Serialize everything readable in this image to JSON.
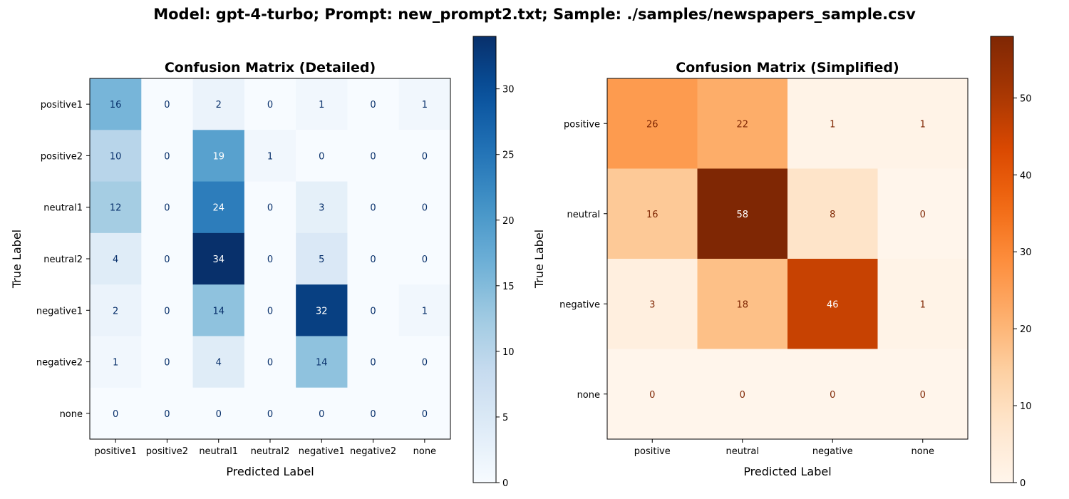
{
  "suptitle": "Model: gpt-4-turbo; Prompt: new_prompt2.txt; Sample: ./samples/newspapers_sample.csv",
  "chart_data": [
    {
      "type": "heatmap",
      "title": "Confusion Matrix (Detailed)",
      "xlabel": "Predicted Label",
      "ylabel": "True Label",
      "colormap": "Blues",
      "x_categories": [
        "positive1",
        "positive2",
        "neutral1",
        "neutral2",
        "negative1",
        "negative2",
        "none"
      ],
      "y_categories": [
        "positive1",
        "positive2",
        "neutral1",
        "neutral2",
        "negative1",
        "negative2",
        "none"
      ],
      "values": [
        [
          16,
          0,
          2,
          0,
          1,
          0,
          1
        ],
        [
          10,
          0,
          19,
          1,
          0,
          0,
          0
        ],
        [
          12,
          0,
          24,
          0,
          3,
          0,
          0
        ],
        [
          4,
          0,
          34,
          0,
          5,
          0,
          0
        ],
        [
          2,
          0,
          14,
          0,
          32,
          0,
          1
        ],
        [
          1,
          0,
          4,
          0,
          14,
          0,
          0
        ],
        [
          0,
          0,
          0,
          0,
          0,
          0,
          0
        ]
      ],
      "colorbar_range": [
        0,
        34
      ],
      "colorbar_ticks": [
        0,
        5,
        10,
        15,
        20,
        25,
        30
      ]
    },
    {
      "type": "heatmap",
      "title": "Confusion Matrix (Simplified)",
      "xlabel": "Predicted Label",
      "ylabel": "True Label",
      "colormap": "Oranges",
      "x_categories": [
        "positive",
        "neutral",
        "negative",
        "none"
      ],
      "y_categories": [
        "positive",
        "neutral",
        "negative",
        "none"
      ],
      "values": [
        [
          26,
          22,
          1,
          1
        ],
        [
          16,
          58,
          8,
          0
        ],
        [
          3,
          18,
          46,
          1
        ],
        [
          0,
          0,
          0,
          0
        ]
      ],
      "colorbar_range": [
        0,
        58
      ],
      "colorbar_ticks": [
        0,
        10,
        20,
        30,
        40,
        50
      ]
    }
  ]
}
